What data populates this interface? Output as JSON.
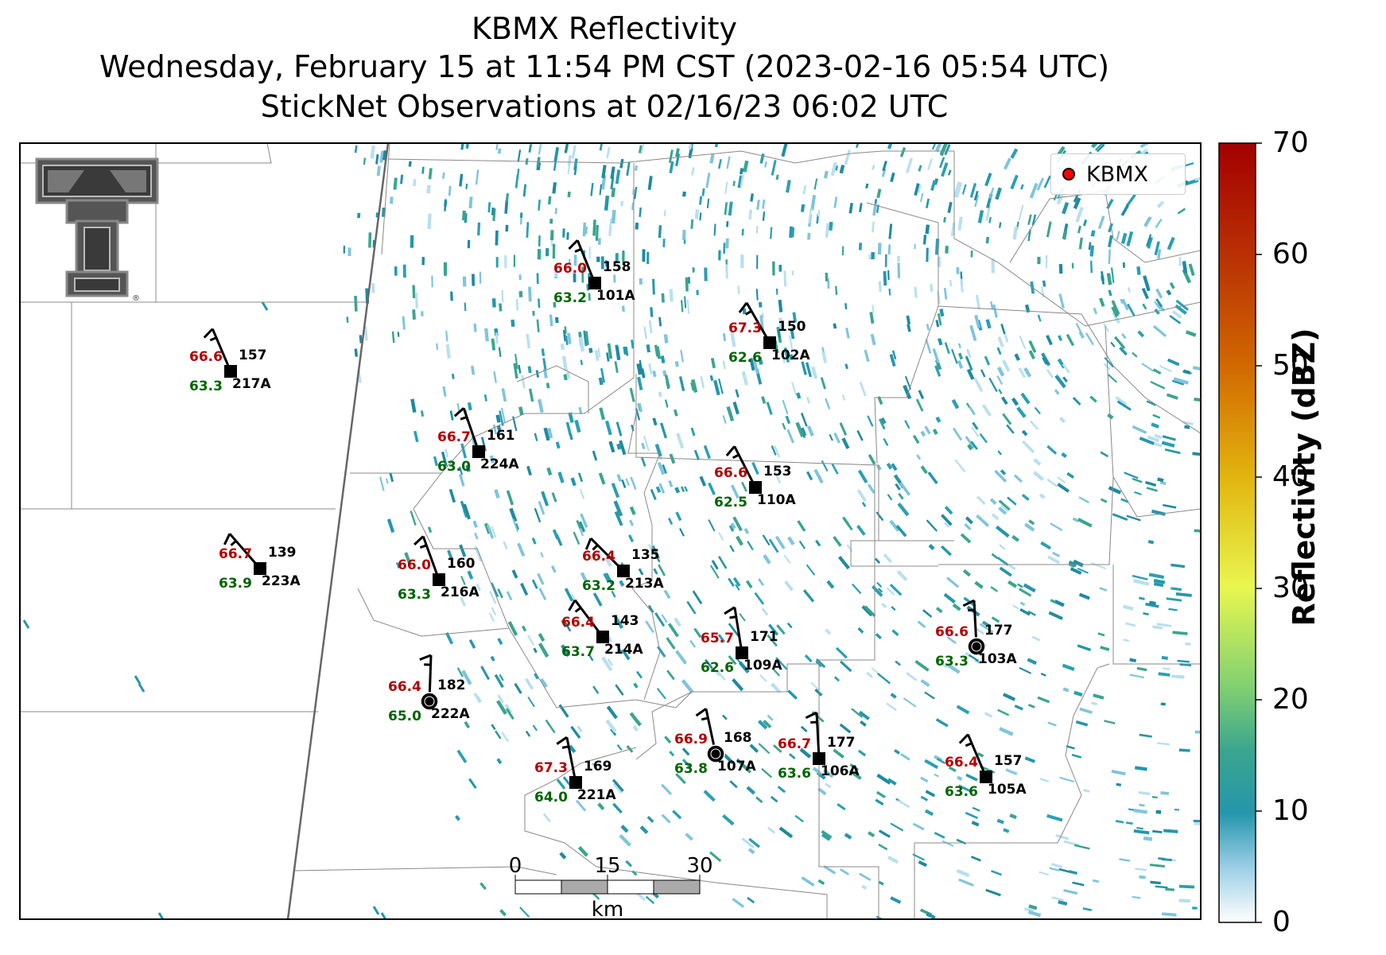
{
  "title": {
    "line1": "KBMX Reflectivity",
    "line2": "Wednesday, February 15 at 11:54 PM CST (2023-02-16 05:54 UTC)",
    "line3": "StickNet Observations at 02/16/23 06:02 UTC"
  },
  "legend": {
    "label": "KBMX",
    "marker_color": "#ff0000"
  },
  "colorbar": {
    "label": "Reflectivity (dBZ)",
    "ticks": [
      "0",
      "10",
      "20",
      "30",
      "40",
      "50",
      "60",
      "70"
    ],
    "colors": [
      "#ffffff",
      "#9ccfe6",
      "#2596ac",
      "#3aa58e",
      "#7fcf72",
      "#e8f74f",
      "#e2b50f",
      "#d26a02",
      "#b82f04",
      "#a30000"
    ]
  },
  "scale_bar": {
    "ticks": [
      "0",
      "15",
      "30"
    ],
    "unit": "km"
  },
  "colors": {
    "temperature": "#b00000",
    "dewpoint": "#006400",
    "radar": "#2596ac"
  },
  "logo": {
    "name": "texas-tech-double-t-logo",
    "mark": "®"
  },
  "stations": [
    {
      "id": "101A",
      "temp": "66.0",
      "dew": "63.2",
      "dir": "158"
    },
    {
      "id": "102A",
      "temp": "67.3",
      "dew": "62.6",
      "dir": "150"
    },
    {
      "id": "217A",
      "temp": "66.6",
      "dew": "63.3",
      "dir": "157"
    },
    {
      "id": "224A",
      "temp": "66.7",
      "dew": "63.0",
      "dir": "161"
    },
    {
      "id": "110A",
      "temp": "66.6",
      "dew": "62.5",
      "dir": "153"
    },
    {
      "id": "223A",
      "temp": "66.7",
      "dew": "63.9",
      "dir": "139"
    },
    {
      "id": "216A",
      "temp": "66.0",
      "dew": "63.3",
      "dir": "160"
    },
    {
      "id": "213A",
      "temp": "66.4",
      "dew": "63.2",
      "dir": "135"
    },
    {
      "id": "214A",
      "temp": "66.4",
      "dew": "63.7",
      "dir": "143"
    },
    {
      "id": "109A",
      "temp": "65.7",
      "dew": "62.6",
      "dir": "171"
    },
    {
      "id": "103A",
      "temp": "66.6",
      "dew": "63.3",
      "dir": "177"
    },
    {
      "id": "222A",
      "temp": "66.4",
      "dew": "65.0",
      "dir": "182"
    },
    {
      "id": "107A",
      "temp": "66.9",
      "dew": "63.8",
      "dir": "168"
    },
    {
      "id": "106A",
      "temp": "66.7",
      "dew": "63.6",
      "dir": "177"
    },
    {
      "id": "105A",
      "temp": "66.4",
      "dew": "63.6",
      "dir": "157"
    },
    {
      "id": "221A",
      "temp": "67.3",
      "dew": "64.0",
      "dir": "169"
    }
  ]
}
